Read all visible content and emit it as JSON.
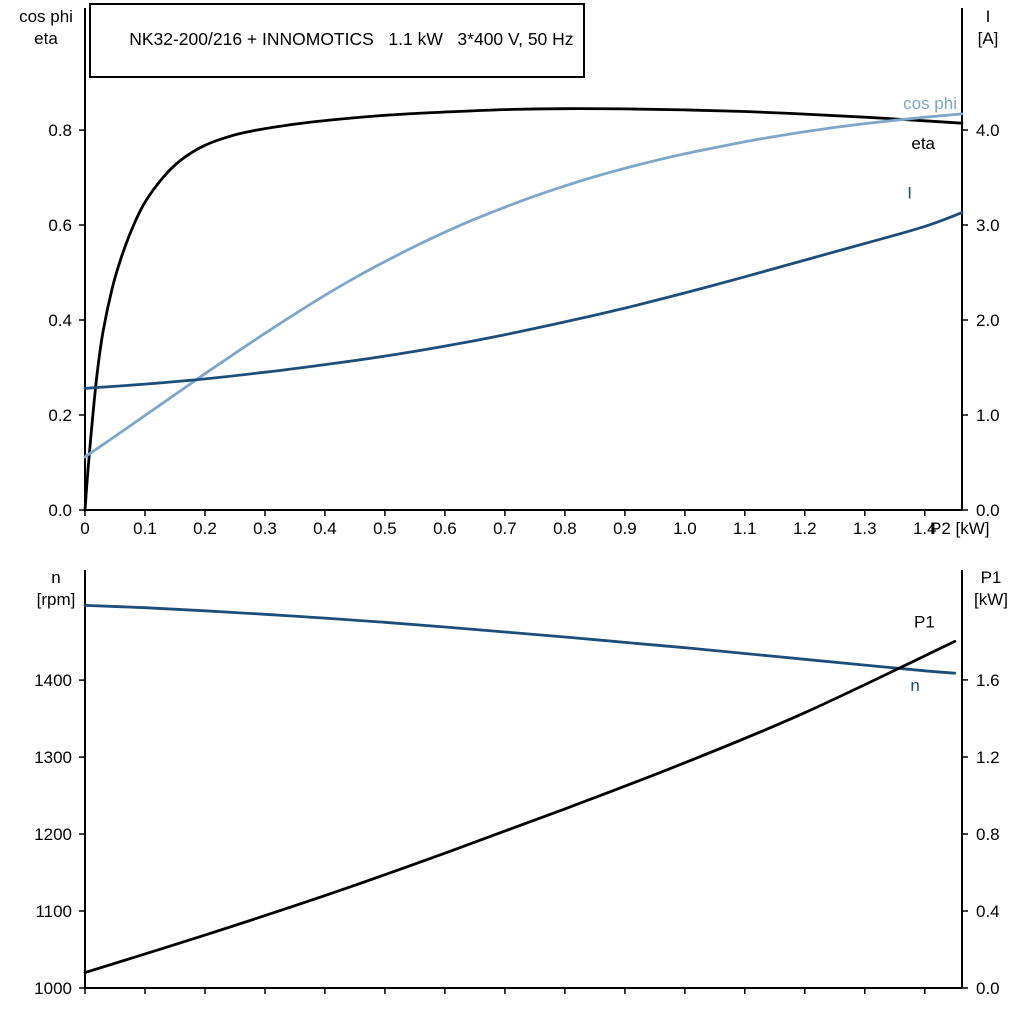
{
  "page": {
    "background": "#ffffff"
  },
  "chart_data": [
    {
      "id": "motor-data",
      "type": "line",
      "title": "NK32-200/216 + INNOMOTICS   1.1 kW   3*400 V, 50 Hz",
      "grid": false,
      "x_axis": {
        "label": "P2 [kW]",
        "min": 0,
        "max": 1.462,
        "ticks": [
          {
            "v": 0,
            "t": "0"
          },
          {
            "v": 0.1,
            "t": "0.1"
          },
          {
            "v": 0.2,
            "t": "0.2"
          },
          {
            "v": 0.3,
            "t": "0.3"
          },
          {
            "v": 0.4,
            "t": "0.4"
          },
          {
            "v": 0.5,
            "t": "0.5"
          },
          {
            "v": 0.6,
            "t": "0.6"
          },
          {
            "v": 0.7,
            "t": "0.7"
          },
          {
            "v": 0.8,
            "t": "0.8"
          },
          {
            "v": 0.9,
            "t": "0.9"
          },
          {
            "v": 1.0,
            "t": "1.0"
          },
          {
            "v": 1.1,
            "t": "1.1"
          },
          {
            "v": 1.2,
            "t": "1.2"
          },
          {
            "v": 1.3,
            "t": "1.3"
          },
          {
            "v": 1.4,
            "t": "1.4"
          }
        ]
      },
      "y_left": {
        "title_lines": [
          "cos phi",
          "eta"
        ],
        "min": 0,
        "max": 1.057,
        "ticks": [
          {
            "v": 0,
            "t": "0.0"
          },
          {
            "v": 0.2,
            "t": "0.2"
          },
          {
            "v": 0.4,
            "t": "0.4"
          },
          {
            "v": 0.6,
            "t": "0.6"
          },
          {
            "v": 0.8,
            "t": "0.8"
          }
        ]
      },
      "y_right": {
        "title_lines": [
          "I",
          "[A]"
        ],
        "min": 0,
        "max": 5.284,
        "ticks": [
          {
            "v": 0,
            "t": "0.0"
          },
          {
            "v": 1,
            "t": "1.0"
          },
          {
            "v": 2,
            "t": "2.0"
          },
          {
            "v": 3,
            "t": "3.0"
          },
          {
            "v": 4,
            "t": "4.0"
          }
        ]
      },
      "series": [
        {
          "name": "eta",
          "label": "eta",
          "axis": "left",
          "color": "#000000",
          "points": [
            [
              0,
              0
            ],
            [
              0.005,
              0.085
            ],
            [
              0.012,
              0.185
            ],
            [
              0.02,
              0.285
            ],
            [
              0.03,
              0.375
            ],
            [
              0.045,
              0.465
            ],
            [
              0.06,
              0.53
            ],
            [
              0.08,
              0.597
            ],
            [
              0.1,
              0.648
            ],
            [
              0.13,
              0.7
            ],
            [
              0.16,
              0.737
            ],
            [
              0.2,
              0.768
            ],
            [
              0.25,
              0.79
            ],
            [
              0.3,
              0.803
            ],
            [
              0.35,
              0.8125
            ],
            [
              0.4,
              0.82
            ],
            [
              0.5,
              0.831
            ],
            [
              0.6,
              0.838
            ],
            [
              0.7,
              0.843
            ],
            [
              0.8,
              0.845
            ],
            [
              0.9,
              0.8445
            ],
            [
              1.0,
              0.8425
            ],
            [
              1.1,
              0.839
            ],
            [
              1.2,
              0.8335
            ],
            [
              1.3,
              0.827
            ],
            [
              1.4,
              0.8195
            ],
            [
              1.462,
              0.8145
            ]
          ]
        },
        {
          "name": "cos phi",
          "label": "cos phi",
          "axis": "left",
          "color": "#7ea6c8",
          "points": [
            [
              0,
              0.112
            ],
            [
              0.05,
              0.155
            ],
            [
              0.1,
              0.199
            ],
            [
              0.15,
              0.243
            ],
            [
              0.2,
              0.287
            ],
            [
              0.25,
              0.33
            ],
            [
              0.3,
              0.372
            ],
            [
              0.35,
              0.413
            ],
            [
              0.4,
              0.452
            ],
            [
              0.45,
              0.489
            ],
            [
              0.5,
              0.523
            ],
            [
              0.55,
              0.555
            ],
            [
              0.6,
              0.585
            ],
            [
              0.65,
              0.6125
            ],
            [
              0.7,
              0.6375
            ],
            [
              0.75,
              0.661
            ],
            [
              0.8,
              0.6825
            ],
            [
              0.85,
              0.702
            ],
            [
              0.9,
              0.7195
            ],
            [
              0.95,
              0.7355
            ],
            [
              1.0,
              0.75
            ],
            [
              1.05,
              0.763
            ],
            [
              1.1,
              0.7755
            ],
            [
              1.15,
              0.7865
            ],
            [
              1.2,
              0.7965
            ],
            [
              1.25,
              0.8055
            ],
            [
              1.3,
              0.8135
            ],
            [
              1.35,
              0.8205
            ],
            [
              1.4,
              0.827
            ],
            [
              1.462,
              0.834
            ]
          ]
        },
        {
          "name": "I",
          "label": "I",
          "axis": "right",
          "color": "#1d4e79",
          "points": [
            [
              0,
              1.28
            ],
            [
              0.1,
              1.325
            ],
            [
              0.2,
              1.38
            ],
            [
              0.3,
              1.45
            ],
            [
              0.4,
              1.53
            ],
            [
              0.5,
              1.62
            ],
            [
              0.6,
              1.725
            ],
            [
              0.7,
              1.845
            ],
            [
              0.8,
              1.98
            ],
            [
              0.9,
              2.125
            ],
            [
              1.0,
              2.285
            ],
            [
              1.1,
              2.455
            ],
            [
              1.2,
              2.63
            ],
            [
              1.3,
              2.805
            ],
            [
              1.4,
              2.985
            ],
            [
              1.462,
              3.13
            ]
          ]
        }
      ]
    },
    {
      "id": "speed-power",
      "type": "line",
      "title": "",
      "grid": false,
      "x_axis": {
        "label": "",
        "min": 0,
        "max": 1.462,
        "ticks": [
          {
            "v": 0,
            "t": ""
          },
          {
            "v": 0.1,
            "t": ""
          },
          {
            "v": 0.2,
            "t": ""
          },
          {
            "v": 0.3,
            "t": ""
          },
          {
            "v": 0.4,
            "t": ""
          },
          {
            "v": 0.5,
            "t": ""
          },
          {
            "v": 0.6,
            "t": ""
          },
          {
            "v": 0.7,
            "t": ""
          },
          {
            "v": 0.8,
            "t": ""
          },
          {
            "v": 0.9,
            "t": ""
          },
          {
            "v": 1.0,
            "t": ""
          },
          {
            "v": 1.1,
            "t": ""
          },
          {
            "v": 1.2,
            "t": ""
          },
          {
            "v": 1.3,
            "t": ""
          },
          {
            "v": 1.4,
            "t": ""
          }
        ]
      },
      "y_left": {
        "title_lines": [
          "n",
          "[rpm]"
        ],
        "min": 1000,
        "max": 1543,
        "ticks": [
          {
            "v": 1000,
            "t": "1000"
          },
          {
            "v": 1100,
            "t": "1100"
          },
          {
            "v": 1200,
            "t": "1200"
          },
          {
            "v": 1300,
            "t": "1300"
          },
          {
            "v": 1400,
            "t": "1400"
          }
        ]
      },
      "y_right": {
        "title_lines": [
          "P1",
          "[kW]"
        ],
        "min": 0,
        "max": 2.171,
        "ticks": [
          {
            "v": 0,
            "t": "0.0"
          },
          {
            "v": 0.4,
            "t": "0.4"
          },
          {
            "v": 0.8,
            "t": "0.8"
          },
          {
            "v": 1.2,
            "t": "1.2"
          },
          {
            "v": 1.6,
            "t": "1.6"
          }
        ]
      },
      "series": [
        {
          "name": "n",
          "label": "n",
          "axis": "left",
          "color": "#1d4e79",
          "points": [
            [
              0,
              1497
            ],
            [
              0.1,
              1494
            ],
            [
              0.2,
              1490
            ],
            [
              0.3,
              1485.5
            ],
            [
              0.4,
              1480.5
            ],
            [
              0.5,
              1475
            ],
            [
              0.6,
              1469
            ],
            [
              0.7,
              1462.5
            ],
            [
              0.8,
              1456
            ],
            [
              0.9,
              1449
            ],
            [
              1.0,
              1442
            ],
            [
              1.1,
              1434.5
            ],
            [
              1.2,
              1427
            ],
            [
              1.3,
              1419.5
            ],
            [
              1.4,
              1412
            ],
            [
              1.45,
              1409
            ]
          ]
        },
        {
          "name": "P1",
          "label": "P1",
          "axis": "right",
          "color": "#000000",
          "points": [
            [
              0,
              0.08
            ],
            [
              0.2,
              0.275
            ],
            [
              0.4,
              0.48
            ],
            [
              0.6,
              0.7
            ],
            [
              0.8,
              0.93
            ],
            [
              1.0,
              1.17
            ],
            [
              1.2,
              1.43
            ],
            [
              1.45,
              1.8
            ]
          ]
        }
      ]
    }
  ]
}
